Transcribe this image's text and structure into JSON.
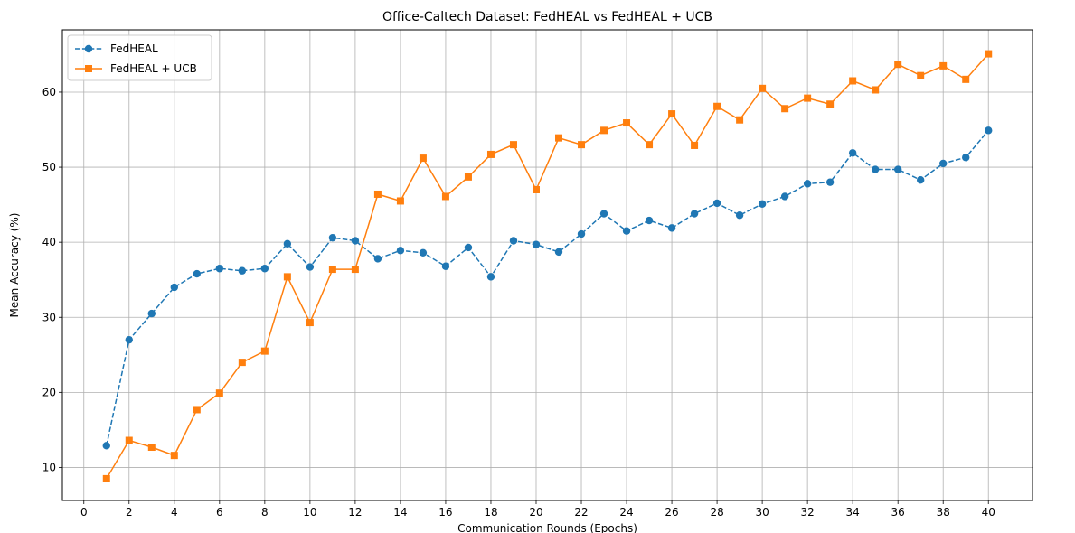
{
  "chart_data": {
    "type": "line",
    "title": "Office-Caltech Dataset: FedHEAL vs FedHEAL + UCB",
    "xlabel": "Communication Rounds (Epochs)",
    "ylabel": "Mean Accuracy (%)",
    "xlim": [
      -0.95,
      41.95
    ],
    "ylim": [
      5.6,
      68.3
    ],
    "xticks": [
      0,
      2,
      4,
      6,
      8,
      10,
      12,
      14,
      16,
      18,
      20,
      22,
      24,
      26,
      28,
      30,
      32,
      34,
      36,
      38,
      40
    ],
    "yticks": [
      10,
      20,
      30,
      40,
      50,
      60
    ],
    "grid": true,
    "legend_position": "top-left",
    "x": [
      1,
      2,
      3,
      4,
      5,
      6,
      7,
      8,
      9,
      10,
      11,
      12,
      13,
      14,
      15,
      16,
      17,
      18,
      19,
      20,
      21,
      22,
      23,
      24,
      25,
      26,
      27,
      28,
      29,
      30,
      31,
      32,
      33,
      34,
      35,
      36,
      37,
      38,
      39,
      40
    ],
    "series": [
      {
        "name": "FedHEAL",
        "color": "#1f77b4",
        "line_style": "dashed",
        "marker": "circle",
        "values": [
          12.9,
          27.0,
          30.5,
          34.0,
          35.8,
          36.5,
          36.2,
          36.5,
          39.8,
          36.7,
          40.6,
          40.2,
          37.8,
          38.9,
          38.6,
          36.8,
          39.3,
          35.4,
          40.2,
          39.7,
          38.7,
          41.1,
          43.8,
          41.5,
          42.9,
          41.9,
          43.8,
          45.2,
          43.6,
          45.1,
          46.1,
          47.8,
          48.0,
          51.9,
          49.7,
          49.7,
          48.3,
          50.5,
          51.3,
          54.9
        ]
      },
      {
        "name": "FedHEAL + UCB",
        "color": "#ff7f0e",
        "line_style": "solid",
        "marker": "square",
        "values": [
          8.5,
          13.6,
          12.7,
          11.6,
          17.7,
          19.9,
          24.0,
          25.5,
          35.4,
          29.3,
          36.4,
          36.4,
          46.4,
          45.5,
          51.2,
          46.1,
          48.7,
          51.7,
          53.0,
          47.0,
          53.9,
          53.0,
          54.9,
          55.9,
          53.0,
          57.1,
          52.9,
          58.1,
          56.3,
          60.5,
          57.8,
          59.2,
          58.4,
          61.5,
          60.3,
          63.7,
          62.2,
          63.5,
          61.7,
          65.1
        ]
      }
    ]
  }
}
